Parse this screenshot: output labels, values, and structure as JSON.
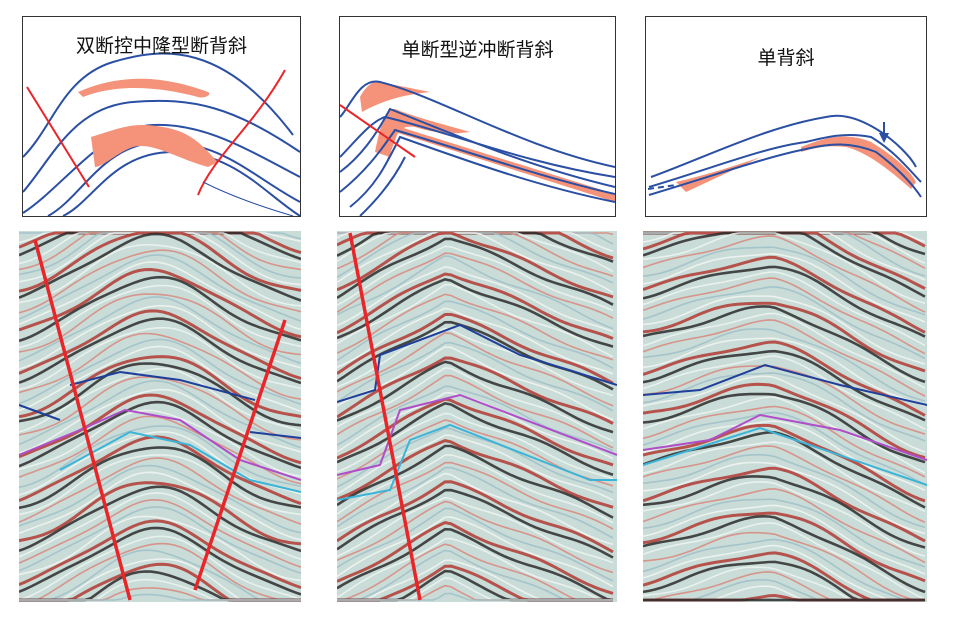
{
  "panels": [
    {
      "title": "双断控中隆型断背斜"
    },
    {
      "title": "单断型逆冲断背斜"
    },
    {
      "title": "单背斜"
    }
  ],
  "colors": {
    "horizon_line": "#2a4fa3",
    "reservoir_fill": "#f4937a",
    "fault": "#e8262a",
    "seismic_blue_horizon": "#1f3f9a",
    "seismic_purple_horizon": "#b04dc8",
    "seismic_cyan_horizon": "#3cb4d8"
  }
}
